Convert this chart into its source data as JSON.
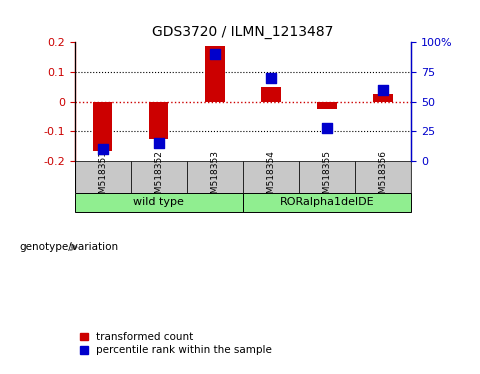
{
  "title": "GDS3720 / ILMN_1213487",
  "samples": [
    "GSM518351",
    "GSM518352",
    "GSM518353",
    "GSM518354",
    "GSM518355",
    "GSM518356"
  ],
  "transformed_count": [
    -0.165,
    -0.125,
    0.185,
    0.05,
    -0.025,
    0.025
  ],
  "percentile_rank": [
    10,
    15,
    90,
    70,
    28,
    60
  ],
  "ylim_left": [
    -0.2,
    0.2
  ],
  "ylim_right": [
    0,
    100
  ],
  "yticks_left": [
    -0.2,
    -0.1,
    0,
    0.1,
    0.2
  ],
  "yticks_right": [
    0,
    25,
    50,
    75,
    100
  ],
  "bar_color": "#CC0000",
  "dot_color": "#0000CC",
  "bar_width": 0.35,
  "dot_size": 45,
  "background_label": "#C8C8C8",
  "background_group": "#90EE90",
  "zero_line_color": "#CC0000",
  "legend_red_label": "transformed count",
  "legend_blue_label": "percentile rank within the sample",
  "genotype_label": "genotype/variation",
  "group_labels": [
    "wild type",
    "RORalpha1delDE"
  ],
  "left_ticklabels": [
    "-0.2",
    "-0.1",
    "0",
    "0.1",
    "0.2"
  ],
  "right_ticklabels": [
    "0",
    "25",
    "50",
    "75",
    "100%"
  ]
}
